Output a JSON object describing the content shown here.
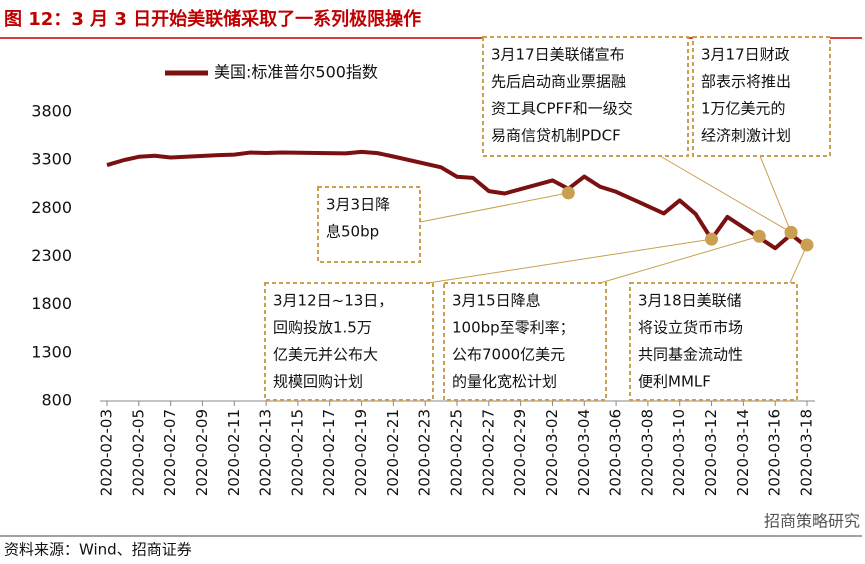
{
  "chart_data": {
    "type": "line",
    "title": "图 12：3 月 3 日开始美联储采取了一系列极限操作",
    "x": [
      "2020-02-03",
      "2020-02-04",
      "2020-02-05",
      "2020-02-06",
      "2020-02-07",
      "2020-02-10",
      "2020-02-11",
      "2020-02-12",
      "2020-02-13",
      "2020-02-14",
      "2020-02-18",
      "2020-02-19",
      "2020-02-20",
      "2020-02-21",
      "2020-02-24",
      "2020-02-25",
      "2020-02-26",
      "2020-02-27",
      "2020-02-28",
      "2020-03-02",
      "2020-03-03",
      "2020-03-04",
      "2020-03-05",
      "2020-03-06",
      "2020-03-09",
      "2020-03-10",
      "2020-03-11",
      "2020-03-12",
      "2020-03-13",
      "2020-03-16",
      "2020-03-17",
      "2020-03-18"
    ],
    "series": [
      {
        "name": "美国:标准普尔500指数",
        "color": "#7b1010",
        "values": [
          3249,
          3298,
          3335,
          3346,
          3328,
          3352,
          3358,
          3379,
          3374,
          3380,
          3370,
          3386,
          3373,
          3338,
          3226,
          3128,
          3116,
          2979,
          2954,
          3090,
          3003,
          3130,
          3024,
          2972,
          2747,
          2882,
          2741,
          2481,
          2711,
          2386,
          2529,
          2398
        ]
      }
    ],
    "xlim": [
      "2020-02-03",
      "2020-03-18"
    ],
    "xticks": [
      "2020-02-03",
      "2020-02-05",
      "2020-02-07",
      "2020-02-09",
      "2020-02-11",
      "2020-02-13",
      "2020-02-15",
      "2020-02-17",
      "2020-02-19",
      "2020-02-21",
      "2020-02-23",
      "2020-02-25",
      "2020-02-27",
      "2020-02-29",
      "2020-03-02",
      "2020-03-04",
      "2020-03-06",
      "2020-03-08",
      "2020-03-10",
      "2020-03-12",
      "2020-03-14",
      "2020-03-16",
      "2020-03-18"
    ],
    "ylim": [
      800,
      3800
    ],
    "yticks": [
      800,
      1300,
      1800,
      2300,
      2800,
      3300,
      3800
    ],
    "annotation_color": "#c9a04f",
    "annotations": [
      {
        "lines": [
          "3月3日降",
          "息50bp"
        ],
        "x": "2020-03-03",
        "value": 2960
      },
      {
        "lines": [
          "3月12日~13日，",
          "回购投放1.5万",
          "亿美元并公布大",
          "规模回购计划"
        ],
        "x": "2020-03-12",
        "value": 2480
      },
      {
        "lines": [
          "3月15日降息",
          "100bp至零利率；",
          "公布7000亿美元",
          "的量化宽松计划"
        ],
        "x": "2020-03-15",
        "value": 2510
      },
      {
        "lines": [
          "3月18日美联储",
          "将设立货币市场",
          "共同基金流动性",
          "便利MMLF"
        ],
        "x": "2020-03-18",
        "value": 2420
      },
      {
        "lines": [
          "3月17日美联储宣布",
          "先后启动商业票据融",
          "资工具CPFF和一级交",
          "易商信贷机制PDCF"
        ],
        "x": "2020-03-17",
        "value": 2550
      },
      {
        "lines": [
          "3月17日财政",
          "部表示将推出",
          "1万亿美元的",
          "经济刺激计划"
        ],
        "x": "2020-03-17",
        "value": 2550
      }
    ],
    "source": "资料来源：Wind、招商证券",
    "watermark": "招商策略研究"
  }
}
